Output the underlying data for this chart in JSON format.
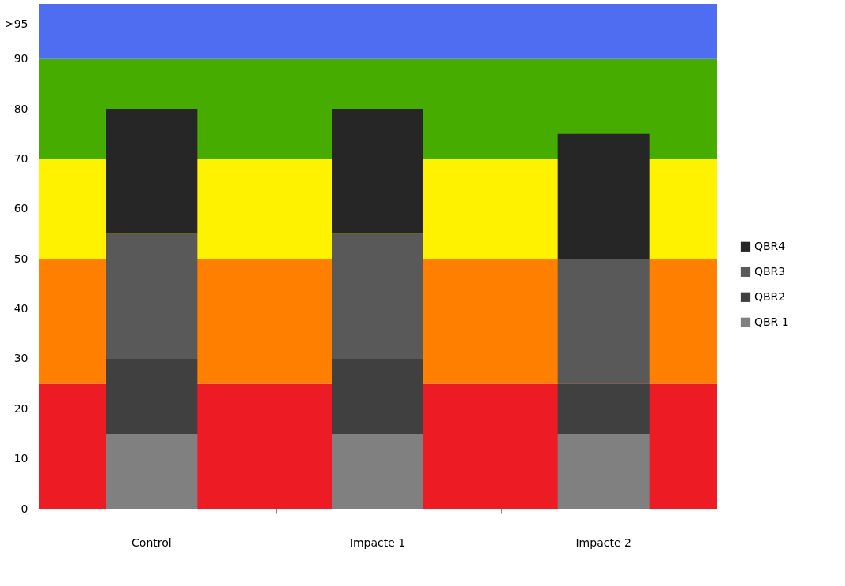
{
  "chart_data": {
    "type": "bar",
    "stacked": true,
    "categories": [
      "Control",
      "Impacte 1",
      "Impacte 2"
    ],
    "series": [
      {
        "name": "QBR 1",
        "color": "#808080",
        "values": [
          15,
          15,
          15
        ]
      },
      {
        "name": "QBR2",
        "color": "#404040",
        "values": [
          15,
          15,
          10
        ]
      },
      {
        "name": "QBR3",
        "color": "#595959",
        "values": [
          25,
          25,
          25
        ]
      },
      {
        "name": "QBR4",
        "color": "#262626",
        "values": [
          25,
          25,
          25
        ]
      }
    ],
    "ylim": [
      0,
      101
    ],
    "yticks": [
      0,
      10,
      20,
      30,
      40,
      50,
      60,
      70,
      80,
      90,
      {
        "value": 97,
        "label": ">95"
      }
    ],
    "bands": [
      {
        "axis": "y",
        "from": 0,
        "to": 25,
        "color": "#ed1c24"
      },
      {
        "axis": "y",
        "from": 25,
        "to": 50,
        "color": "#ff7f00"
      },
      {
        "axis": "y",
        "from": 50,
        "to": 70,
        "color": "#fff200"
      },
      {
        "axis": "y",
        "from": 70,
        "to": 90,
        "color": "#46ad00"
      },
      {
        "axis": "y",
        "from": 90,
        "to": 101,
        "color": "#4f6df0"
      }
    ],
    "grid": false,
    "legend": "right"
  }
}
